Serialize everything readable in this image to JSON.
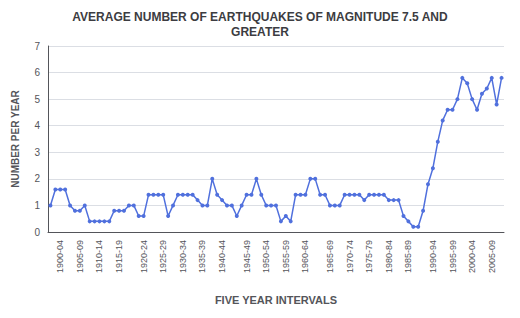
{
  "chart_data": {
    "type": "line",
    "title": "AVERAGE NUMBER OF EARTHQUAKES OF MAGNITUDE 7.5 AND\nGREATER",
    "xlabel": "FIVE YEAR INTERVALS",
    "ylabel": "NUMBER PER YEAR",
    "categories": [
      null,
      null,
      "1900-04",
      null,
      null,
      null,
      "1905-09",
      null,
      null,
      null,
      "1910-14",
      null,
      null,
      null,
      "1915-19",
      null,
      null,
      null,
      null,
      "1920-24",
      null,
      null,
      null,
      "1925-29",
      null,
      null,
      null,
      "1930-34",
      null,
      null,
      null,
      "1935-39",
      null,
      null,
      null,
      "1940-44",
      null,
      null,
      null,
      null,
      "1945-49",
      null,
      null,
      null,
      "1950-54",
      null,
      null,
      null,
      "1955-59",
      null,
      null,
      null,
      "1960-64",
      null,
      null,
      null,
      null,
      "1965-69",
      null,
      null,
      null,
      "1970-74",
      null,
      null,
      null,
      "1975-79",
      null,
      null,
      null,
      "1980-84",
      null,
      null,
      null,
      "1985-89",
      null,
      null,
      null,
      null,
      "1990-94",
      null,
      null,
      null,
      "1995-99",
      null,
      null,
      null,
      "2000-04",
      null,
      null,
      null,
      "2005-09",
      null,
      null
    ],
    "values": [
      1.0,
      1.6,
      1.6,
      1.6,
      1.0,
      0.8,
      0.8,
      1.0,
      0.4,
      0.4,
      0.4,
      0.4,
      0.4,
      0.8,
      0.8,
      0.8,
      1.0,
      1.0,
      0.6,
      0.6,
      1.4,
      1.4,
      1.4,
      1.4,
      0.6,
      1.0,
      1.4,
      1.4,
      1.4,
      1.4,
      1.2,
      1.0,
      1.0,
      2.0,
      1.4,
      1.2,
      1.0,
      1.0,
      0.6,
      1.0,
      1.4,
      1.4,
      2.0,
      1.4,
      1.0,
      1.0,
      1.0,
      0.4,
      0.6,
      0.4,
      1.4,
      1.4,
      1.4,
      2.0,
      2.0,
      1.4,
      1.4,
      1.0,
      1.0,
      1.0,
      1.4,
      1.4,
      1.4,
      1.4,
      1.2,
      1.4,
      1.4,
      1.4,
      1.4,
      1.2,
      1.2,
      1.2,
      0.6,
      0.4,
      0.2,
      0.2,
      0.8,
      1.8,
      2.4,
      3.4,
      4.2,
      4.6,
      4.6,
      5.0,
      5.8,
      5.6,
      5.0,
      4.6,
      5.2,
      5.4,
      5.8,
      4.8,
      5.8
    ],
    "ylim": [
      0,
      7
    ],
    "yticks": [
      0,
      1,
      2,
      3,
      4,
      5,
      6,
      7
    ],
    "grid": true,
    "marker": "circle"
  }
}
